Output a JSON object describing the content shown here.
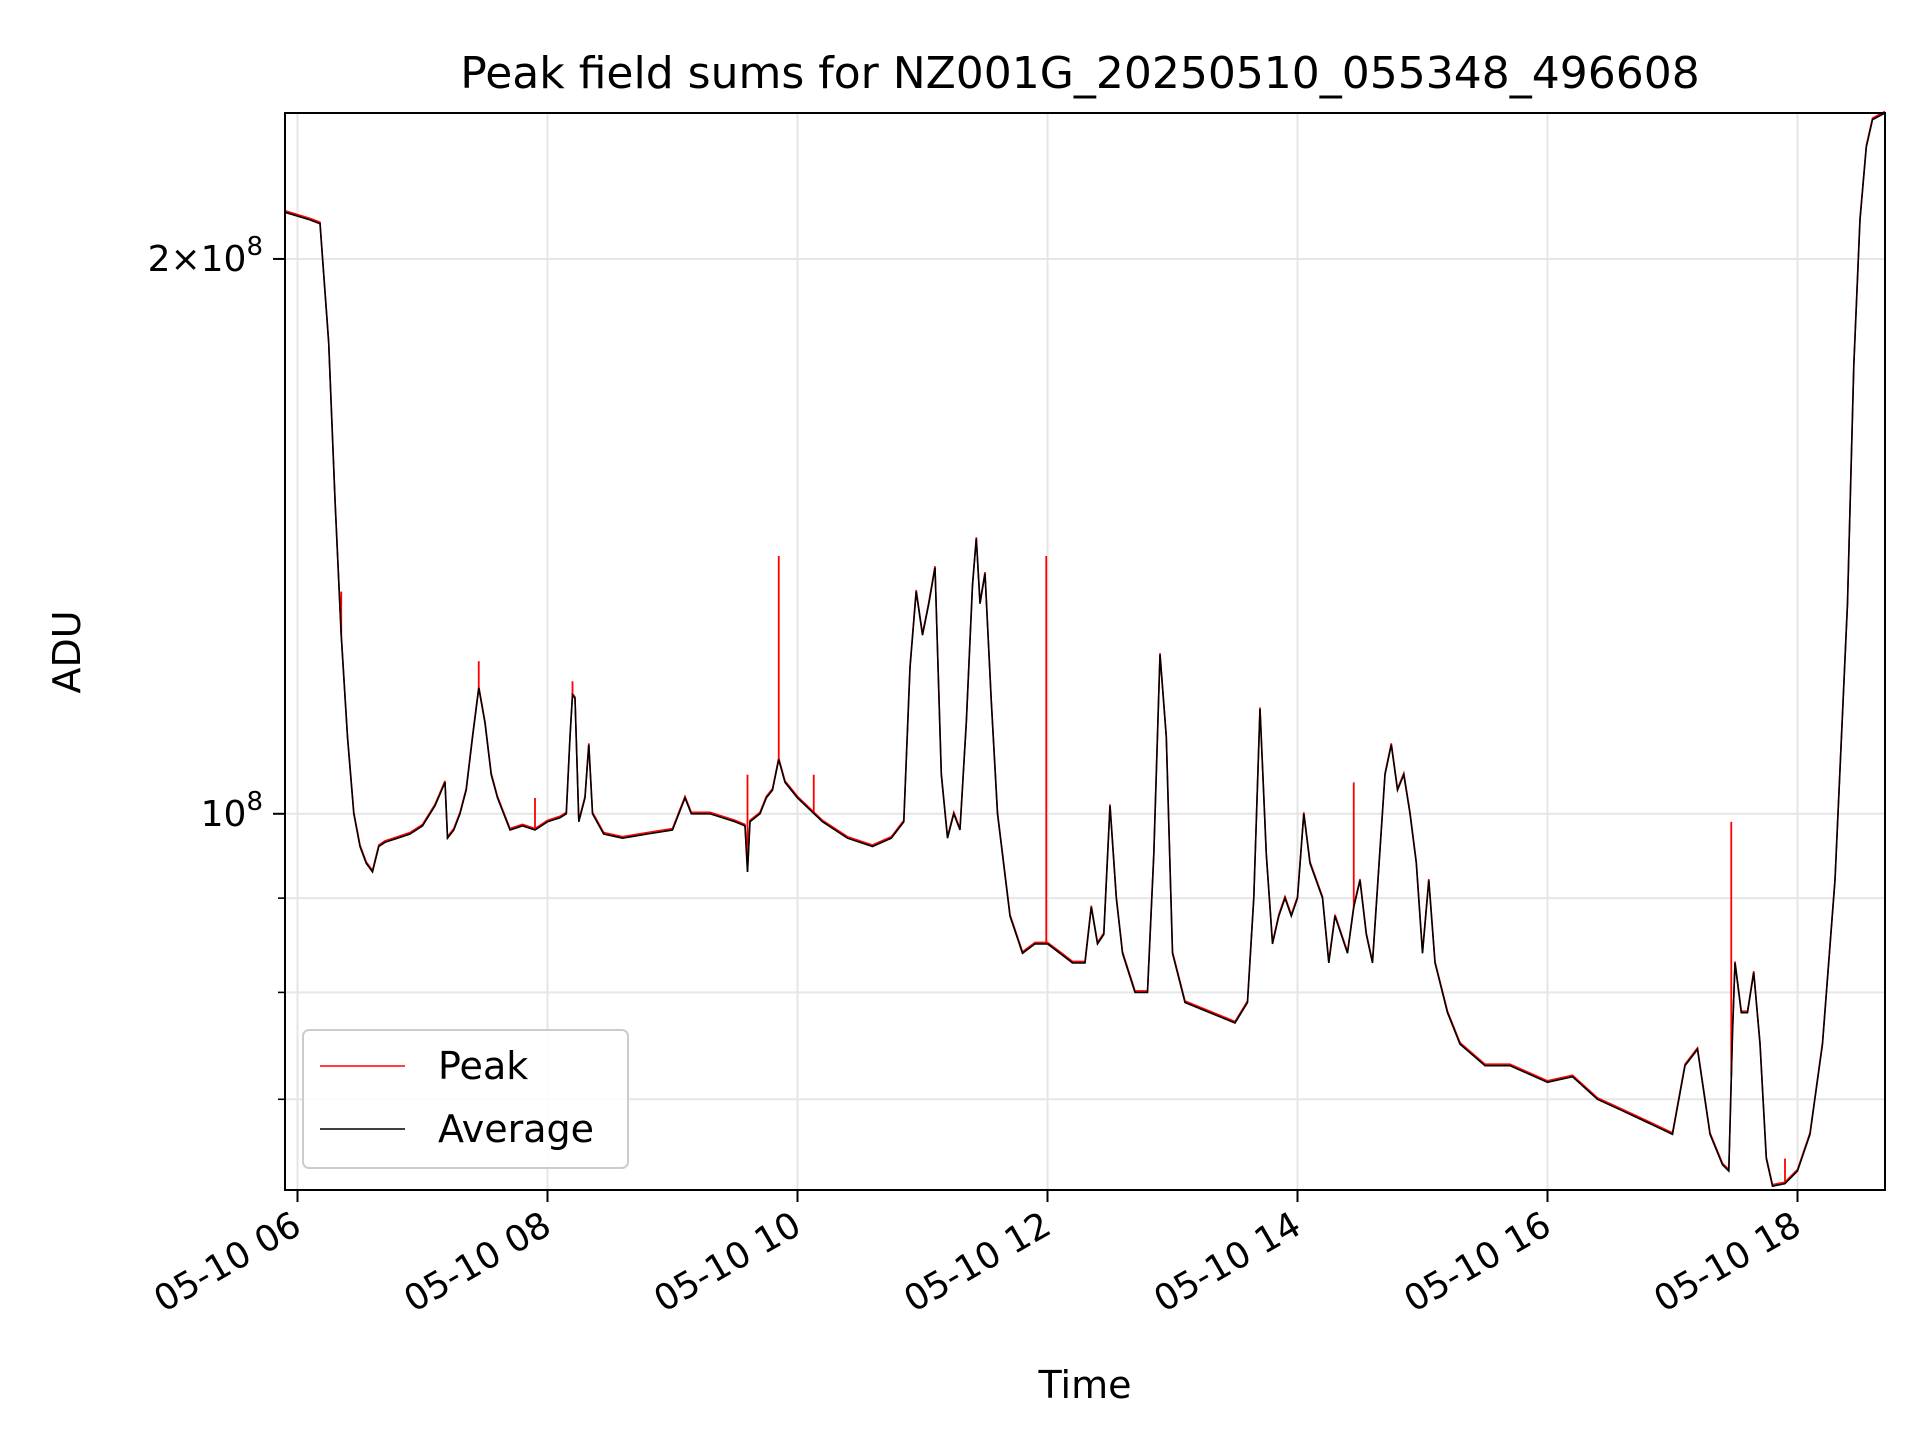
{
  "chart_data": {
    "type": "line",
    "title": "Peak field sums for NZ001G_20250510_055348_496608",
    "xlabel": "Time",
    "ylabel": "ADU",
    "x_unit": "hours",
    "x_range": [
      5.9,
      18.7
    ],
    "yscale": "log",
    "ylim": [
      62500000.0,
      240000000.0
    ],
    "grid": true,
    "legend_position": "lower-left",
    "x_ticks": [
      {
        "value": 6,
        "label": "05-10 06"
      },
      {
        "value": 8,
        "label": "05-10 08"
      },
      {
        "value": 10,
        "label": "05-10 10"
      },
      {
        "value": 12,
        "label": "05-10 12"
      },
      {
        "value": 14,
        "label": "05-10 14"
      },
      {
        "value": 16,
        "label": "05-10 16"
      },
      {
        "value": 18,
        "label": "05-10 18"
      }
    ],
    "y_major_ticks": [
      {
        "value": 100000000,
        "base": "10",
        "exp": "8",
        "coef": ""
      },
      {
        "value": 200000000,
        "base": "10",
        "exp": "8",
        "coef": "2×"
      }
    ],
    "y_minor_ticks": [
      70000000,
      80000000,
      90000000
    ],
    "series": [
      {
        "name": "Average",
        "color": "#000000",
        "points": [
          [
            5.9,
            212000000.0
          ],
          [
            6.1,
            210000000.0
          ],
          [
            6.18,
            209000000.0
          ],
          [
            6.25,
            180000000.0
          ],
          [
            6.3,
            148000000.0
          ],
          [
            6.35,
            125000000.0
          ],
          [
            6.4,
            110000000.0
          ],
          [
            6.45,
            100000000.0
          ],
          [
            6.5,
            96000000.0
          ],
          [
            6.55,
            94000000.0
          ],
          [
            6.6,
            93000000.0
          ],
          [
            6.65,
            96000000.0
          ],
          [
            6.7,
            96500000.0
          ],
          [
            6.8,
            97000000.0
          ],
          [
            6.9,
            97500000.0
          ],
          [
            7.0,
            98500000.0
          ],
          [
            7.1,
            101000000.0
          ],
          [
            7.18,
            104000000.0
          ],
          [
            7.2,
            97000000.0
          ],
          [
            7.25,
            98000000.0
          ],
          [
            7.3,
            100000000.0
          ],
          [
            7.35,
            103000000.0
          ],
          [
            7.4,
            110000000.0
          ],
          [
            7.45,
            117000000.0
          ],
          [
            7.5,
            112000000.0
          ],
          [
            7.55,
            105000000.0
          ],
          [
            7.6,
            102000000.0
          ],
          [
            7.7,
            98000000.0
          ],
          [
            7.8,
            98500000.0
          ],
          [
            7.9,
            98000000.0
          ],
          [
            8.0,
            99000000.0
          ],
          [
            8.1,
            99500000.0
          ],
          [
            8.15,
            100000000.0
          ],
          [
            8.18,
            110000000.0
          ],
          [
            8.2,
            116000000.0
          ],
          [
            8.22,
            115500000.0
          ],
          [
            8.25,
            99000000.0
          ],
          [
            8.3,
            102000000.0
          ],
          [
            8.33,
            109000000.0
          ],
          [
            8.36,
            100000000.0
          ],
          [
            8.45,
            97500000.0
          ],
          [
            8.6,
            97000000.0
          ],
          [
            8.8,
            97500000.0
          ],
          [
            9.0,
            98000000.0
          ],
          [
            9.1,
            102000000.0
          ],
          [
            9.15,
            100000000.0
          ],
          [
            9.3,
            100000000.0
          ],
          [
            9.5,
            99000000.0
          ],
          [
            9.58,
            98500000.0
          ],
          [
            9.6,
            93000000.0
          ],
          [
            9.62,
            99000000.0
          ],
          [
            9.7,
            100000000.0
          ],
          [
            9.75,
            102000000.0
          ],
          [
            9.8,
            103000000.0
          ],
          [
            9.85,
            107000000.0
          ],
          [
            9.9,
            104000000.0
          ],
          [
            10.0,
            102000000.0
          ],
          [
            10.2,
            99000000.0
          ],
          [
            10.4,
            97000000.0
          ],
          [
            10.6,
            96000000.0
          ],
          [
            10.75,
            97000000.0
          ],
          [
            10.85,
            99000000.0
          ],
          [
            10.9,
            120000000.0
          ],
          [
            10.95,
            132000000.0
          ],
          [
            11.0,
            125000000.0
          ],
          [
            11.05,
            130000000.0
          ],
          [
            11.1,
            136000000.0
          ],
          [
            11.15,
            105000000.0
          ],
          [
            11.2,
            97000000.0
          ],
          [
            11.25,
            100000000.0
          ],
          [
            11.3,
            98000000.0
          ],
          [
            11.35,
            112000000.0
          ],
          [
            11.4,
            133000000.0
          ],
          [
            11.43,
            141000000.0
          ],
          [
            11.46,
            130000000.0
          ],
          [
            11.5,
            135000000.0
          ],
          [
            11.55,
            115000000.0
          ],
          [
            11.6,
            100000000.0
          ],
          [
            11.7,
            88000000.0
          ],
          [
            11.8,
            84000000.0
          ],
          [
            11.9,
            85000000.0
          ],
          [
            12.0,
            85000000.0
          ],
          [
            12.1,
            84000000.0
          ],
          [
            12.2,
            83000000.0
          ],
          [
            12.3,
            83000000.0
          ],
          [
            12.35,
            89000000.0
          ],
          [
            12.4,
            85000000.0
          ],
          [
            12.45,
            86000000.0
          ],
          [
            12.5,
            101000000.0
          ],
          [
            12.55,
            90000000.0
          ],
          [
            12.6,
            84000000.0
          ],
          [
            12.7,
            80000000.0
          ],
          [
            12.8,
            80000000.0
          ],
          [
            12.85,
            95000000.0
          ],
          [
            12.9,
            122000000.0
          ],
          [
            12.95,
            110000000.0
          ],
          [
            13.0,
            84000000.0
          ],
          [
            13.1,
            79000000.0
          ],
          [
            13.3,
            78000000.0
          ],
          [
            13.5,
            77000000.0
          ],
          [
            13.6,
            79000000.0
          ],
          [
            13.65,
            90000000.0
          ],
          [
            13.7,
            114000000.0
          ],
          [
            13.75,
            95000000.0
          ],
          [
            13.8,
            85000000.0
          ],
          [
            13.85,
            88000000.0
          ],
          [
            13.9,
            90000000.0
          ],
          [
            13.95,
            88000000.0
          ],
          [
            14.0,
            90000000.0
          ],
          [
            14.05,
            100000000.0
          ],
          [
            14.1,
            94000000.0
          ],
          [
            14.2,
            90000000.0
          ],
          [
            14.25,
            83000000.0
          ],
          [
            14.3,
            88000000.0
          ],
          [
            14.4,
            84000000.0
          ],
          [
            14.45,
            89000000.0
          ],
          [
            14.5,
            92000000.0
          ],
          [
            14.55,
            86000000.0
          ],
          [
            14.6,
            83000000.0
          ],
          [
            14.7,
            105000000.0
          ],
          [
            14.75,
            109000000.0
          ],
          [
            14.8,
            103000000.0
          ],
          [
            14.85,
            105000000.0
          ],
          [
            14.9,
            100000000.0
          ],
          [
            14.95,
            94000000.0
          ],
          [
            15.0,
            84000000.0
          ],
          [
            15.05,
            92000000.0
          ],
          [
            15.1,
            83000000.0
          ],
          [
            15.2,
            78000000.0
          ],
          [
            15.3,
            75000000.0
          ],
          [
            15.5,
            73000000.0
          ],
          [
            15.7,
            73000000.0
          ],
          [
            16.0,
            71500000.0
          ],
          [
            16.2,
            72000000.0
          ],
          [
            16.4,
            70000000.0
          ],
          [
            16.6,
            69000000.0
          ],
          [
            16.8,
            68000000.0
          ],
          [
            17.0,
            67000000.0
          ],
          [
            17.1,
            73000000.0
          ],
          [
            17.2,
            74500000.0
          ],
          [
            17.3,
            67000000.0
          ],
          [
            17.4,
            64500000.0
          ],
          [
            17.45,
            64000000.0
          ],
          [
            17.48,
            76000000.0
          ],
          [
            17.5,
            83000000.0
          ],
          [
            17.55,
            78000000.0
          ],
          [
            17.6,
            78000000.0
          ],
          [
            17.65,
            82000000.0
          ],
          [
            17.7,
            75000000.0
          ],
          [
            17.75,
            65000000.0
          ],
          [
            17.8,
            62800000.0
          ],
          [
            17.9,
            63000000.0
          ],
          [
            18.0,
            64000000.0
          ],
          [
            18.1,
            67000000.0
          ],
          [
            18.2,
            75000000.0
          ],
          [
            18.3,
            92000000.0
          ],
          [
            18.4,
            130000000.0
          ],
          [
            18.45,
            175000000.0
          ],
          [
            18.5,
            210000000.0
          ],
          [
            18.55,
            230000000.0
          ],
          [
            18.6,
            238000000.0
          ],
          [
            18.7,
            240000000.0
          ]
        ]
      },
      {
        "name": "Peak",
        "color": "#ff0000",
        "spikes": [
          [
            6.35,
            132000000.0
          ],
          [
            7.45,
            121000000.0
          ],
          [
            7.9,
            102000000.0
          ],
          [
            8.2,
            118000000.0
          ],
          [
            9.6,
            105000000.0
          ],
          [
            9.85,
            138000000.0
          ],
          [
            10.13,
            105000000.0
          ],
          [
            11.99,
            138000000.0
          ],
          [
            14.45,
            104000000.0
          ],
          [
            17.47,
            99000000.0
          ],
          [
            17.9,
            65000000.0
          ]
        ]
      }
    ]
  },
  "legend": [
    {
      "label": "Peak",
      "color": "#ff0000"
    },
    {
      "label": "Average",
      "color": "#000000"
    }
  ]
}
